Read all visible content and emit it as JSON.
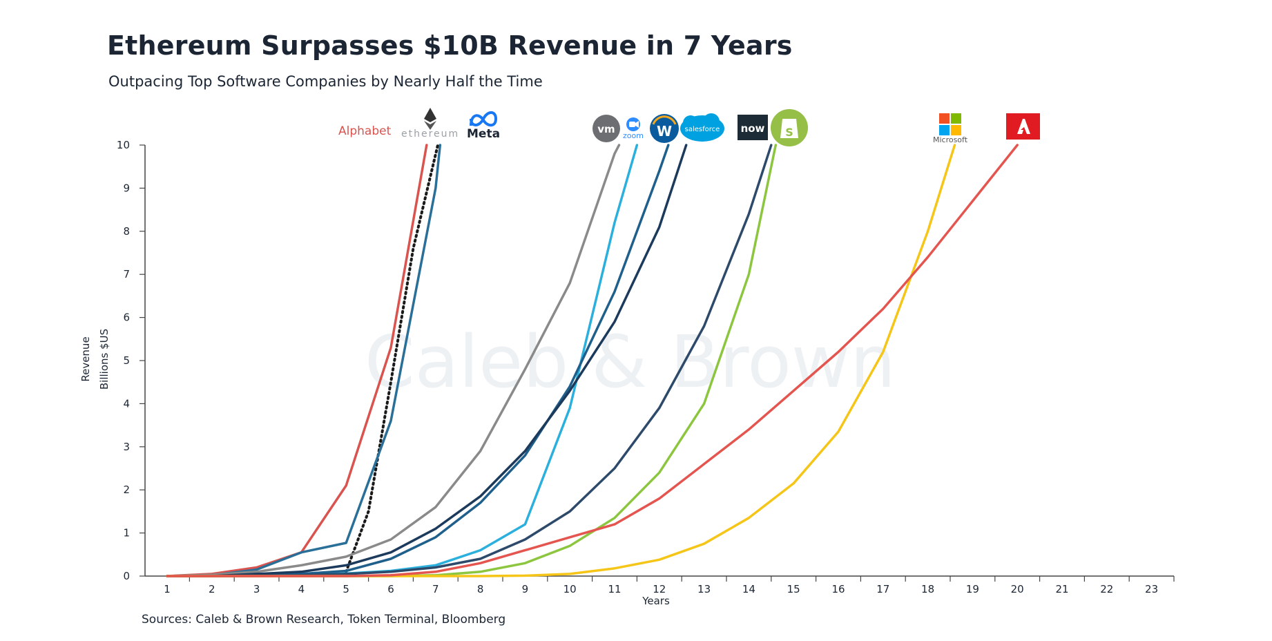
{
  "header": {
    "title": "Ethereum Surpasses $10B Revenue in 7 Years",
    "subtitle": "Outpacing Top Software Companies by Nearly Half the Time"
  },
  "footer": {
    "source": "Sources: Caleb & Brown Research, Token Terminal, Bloomberg"
  },
  "watermark": "Caleb & Brown",
  "logos": {
    "alphabet": "Alphabet",
    "ethereum": "ethereum",
    "meta": "Meta",
    "vmware": "vm",
    "zoom": "zoom",
    "workday": "W",
    "salesforce": "salesforce",
    "servicenow": "now",
    "shopify": "S",
    "microsoft": "Microsoft"
  },
  "chart_data": {
    "type": "line",
    "title": "Ethereum Surpasses $10B Revenue in 7 Years",
    "subtitle": "Outpacing Top Software Companies by Nearly Half the Time",
    "xlabel": "Years",
    "ylabel": "Revenue",
    "ylabel2": "Billions $US",
    "xlim": [
      1,
      23
    ],
    "ylim": [
      0,
      10
    ],
    "xticks": [
      1,
      2,
      3,
      4,
      5,
      6,
      7,
      8,
      9,
      10,
      11,
      12,
      13,
      14,
      15,
      16,
      17,
      18,
      19,
      20,
      21,
      22,
      23
    ],
    "yticks": [
      0,
      1,
      2,
      3,
      4,
      5,
      6,
      7,
      8,
      9,
      10
    ],
    "series": [
      {
        "name": "Alphabet",
        "color": "#d9534f",
        "dash": false,
        "points": [
          [
            1,
            0
          ],
          [
            2,
            0.05
          ],
          [
            3,
            0.2
          ],
          [
            4,
            0.55
          ],
          [
            5,
            2.1
          ],
          [
            6,
            5.3
          ],
          [
            6.8,
            10
          ]
        ]
      },
      {
        "name": "Ethereum",
        "color": "#1a1a1a",
        "dash": true,
        "points": [
          [
            5,
            0.1
          ],
          [
            5.5,
            1.5
          ],
          [
            6,
            4.5
          ],
          [
            6.5,
            7.6
          ],
          [
            7.05,
            10
          ]
        ]
      },
      {
        "name": "Meta",
        "color": "#2a6f97",
        "dash": false,
        "points": [
          [
            1,
            0
          ],
          [
            2,
            0.02
          ],
          [
            3,
            0.15
          ],
          [
            4,
            0.55
          ],
          [
            5,
            0.77
          ],
          [
            6,
            3.6
          ],
          [
            7,
            9
          ],
          [
            7.1,
            10
          ]
        ]
      },
      {
        "name": "VMware",
        "color": "#8a8a8a",
        "dash": false,
        "points": [
          [
            1,
            0
          ],
          [
            2,
            0.03
          ],
          [
            3,
            0.1
          ],
          [
            4,
            0.25
          ],
          [
            5,
            0.45
          ],
          [
            6,
            0.85
          ],
          [
            7,
            1.6
          ],
          [
            8,
            2.9
          ],
          [
            9,
            4.8
          ],
          [
            10,
            6.8
          ],
          [
            11,
            9.8
          ],
          [
            11.1,
            10
          ]
        ]
      },
      {
        "name": "Zoom",
        "color": "#2bb0dd",
        "dash": false,
        "points": [
          [
            1,
            0
          ],
          [
            2,
            0
          ],
          [
            3,
            0.02
          ],
          [
            4,
            0.03
          ],
          [
            5,
            0.06
          ],
          [
            6,
            0.12
          ],
          [
            7,
            0.25
          ],
          [
            8,
            0.6
          ],
          [
            9,
            1.2
          ],
          [
            10,
            3.9
          ],
          [
            11,
            8.2
          ],
          [
            11.5,
            10
          ]
        ]
      },
      {
        "name": "Workday",
        "color": "#1f5f8b",
        "dash": false,
        "points": [
          [
            1,
            0
          ],
          [
            2,
            0
          ],
          [
            3,
            0.02
          ],
          [
            4,
            0.05
          ],
          [
            5,
            0.12
          ],
          [
            6,
            0.4
          ],
          [
            7,
            0.9
          ],
          [
            8,
            1.7
          ],
          [
            9,
            2.8
          ],
          [
            10,
            4.4
          ],
          [
            11,
            6.6
          ],
          [
            12,
            9.4
          ],
          [
            12.2,
            10
          ]
        ]
      },
      {
        "name": "Salesforce",
        "color": "#1b3a5c",
        "dash": false,
        "points": [
          [
            1,
            0
          ],
          [
            2,
            0
          ],
          [
            3,
            0.05
          ],
          [
            4,
            0.1
          ],
          [
            5,
            0.25
          ],
          [
            6,
            0.55
          ],
          [
            7,
            1.1
          ],
          [
            8,
            1.85
          ],
          [
            9,
            2.9
          ],
          [
            10,
            4.3
          ],
          [
            11,
            5.9
          ],
          [
            12,
            8.1
          ],
          [
            12.6,
            10
          ]
        ]
      },
      {
        "name": "ServiceNow",
        "color": "#2d4a6b",
        "dash": false,
        "points": [
          [
            1,
            0
          ],
          [
            2,
            0
          ],
          [
            3,
            0
          ],
          [
            4,
            0.02
          ],
          [
            5,
            0.05
          ],
          [
            6,
            0.1
          ],
          [
            7,
            0.2
          ],
          [
            8,
            0.4
          ],
          [
            9,
            0.85
          ],
          [
            10,
            1.5
          ],
          [
            11,
            2.5
          ],
          [
            12,
            3.9
          ],
          [
            13,
            5.8
          ],
          [
            14,
            8.4
          ],
          [
            14.5,
            10
          ]
        ]
      },
      {
        "name": "Shopify",
        "color": "#8cc63f",
        "dash": false,
        "points": [
          [
            1,
            0
          ],
          [
            2,
            0
          ],
          [
            3,
            0
          ],
          [
            4,
            0
          ],
          [
            5,
            0
          ],
          [
            6,
            0
          ],
          [
            7,
            0.02
          ],
          [
            8,
            0.1
          ],
          [
            9,
            0.3
          ],
          [
            10,
            0.7
          ],
          [
            11,
            1.35
          ],
          [
            12,
            2.4
          ],
          [
            13,
            4
          ],
          [
            14,
            7
          ],
          [
            14.6,
            10
          ]
        ]
      },
      {
        "name": "Microsoft",
        "color": "#f5c518",
        "dash": false,
        "points": [
          [
            1,
            0
          ],
          [
            2,
            0
          ],
          [
            3,
            0
          ],
          [
            4,
            0
          ],
          [
            5,
            0
          ],
          [
            6,
            0
          ],
          [
            7,
            0
          ],
          [
            8,
            0
          ],
          [
            9,
            0.01
          ],
          [
            10,
            0.05
          ],
          [
            11,
            0.18
          ],
          [
            12,
            0.38
          ],
          [
            13,
            0.75
          ],
          [
            14,
            1.35
          ],
          [
            15,
            2.15
          ],
          [
            16,
            3.35
          ],
          [
            17,
            5.2
          ],
          [
            18,
            8
          ],
          [
            18.6,
            10
          ]
        ]
      },
      {
        "name": "Adobe",
        "color": "#e5554f",
        "dash": false,
        "points": [
          [
            1,
            0
          ],
          [
            2,
            0
          ],
          [
            3,
            0
          ],
          [
            4,
            0
          ],
          [
            5,
            0
          ],
          [
            6,
            0.02
          ],
          [
            7,
            0.1
          ],
          [
            8,
            0.3
          ],
          [
            9,
            0.6
          ],
          [
            10,
            0.9
          ],
          [
            11,
            1.2
          ],
          [
            12,
            1.8
          ],
          [
            13,
            2.6
          ],
          [
            14,
            3.4
          ],
          [
            15,
            4.3
          ],
          [
            16,
            5.2
          ],
          [
            17,
            6.2
          ],
          [
            18,
            7.4
          ],
          [
            19,
            8.7
          ],
          [
            20,
            10
          ]
        ]
      }
    ]
  }
}
